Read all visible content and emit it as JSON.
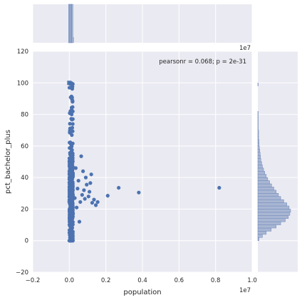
{
  "chart_data": {
    "type": "scatter",
    "xlabel": "population",
    "ylabel": "pct_bachelor_plus",
    "x_offset_label": "1e7",
    "top_offset_label": "1e7",
    "annotation": "pearsonr = 0.068; p = 2e-31",
    "xlim": [
      -0.2,
      1.0
    ],
    "ylim": [
      -20,
      120
    ],
    "x_units": "1e7",
    "x_ticks": [
      "−0.2",
      "0.0",
      "0.2",
      "0.4",
      "0.6",
      "0.8",
      "1.0"
    ],
    "y_ticks": [
      "−20",
      "0",
      "20",
      "40",
      "60",
      "80",
      "100",
      "120"
    ],
    "grid": true,
    "point_color": "#4c72b0",
    "background": "#eaeaf2",
    "outliers": [
      {
        "x": 0.82,
        "y": 33.5
      },
      {
        "x": 0.38,
        "y": 30.5
      },
      {
        "x": 0.27,
        "y": 33.5
      },
      {
        "x": 0.21,
        "y": 28.5
      },
      {
        "x": 0.155,
        "y": 24.5
      },
      {
        "x": 0.145,
        "y": 22.5
      },
      {
        "x": 0.135,
        "y": 26.0
      },
      {
        "x": 0.125,
        "y": 24.0
      },
      {
        "x": 0.12,
        "y": 42.0
      },
      {
        "x": 0.115,
        "y": 36.5
      },
      {
        "x": 0.11,
        "y": 31.0
      },
      {
        "x": 0.105,
        "y": 28.0
      },
      {
        "x": 0.095,
        "y": 35.5
      },
      {
        "x": 0.09,
        "y": 40.0
      },
      {
        "x": 0.085,
        "y": 26.5
      },
      {
        "x": 0.08,
        "y": 32.0
      },
      {
        "x": 0.075,
        "y": 44.0
      },
      {
        "x": 0.07,
        "y": 29.0
      },
      {
        "x": 0.065,
        "y": 53.5
      },
      {
        "x": 0.06,
        "y": 24.5
      },
      {
        "x": 0.055,
        "y": 12.0
      },
      {
        "x": 0.05,
        "y": 38.0
      },
      {
        "x": 0.045,
        "y": 33.0
      },
      {
        "x": 0.04,
        "y": 21.0
      },
      {
        "x": 0.035,
        "y": 46.0
      },
      {
        "x": 0.03,
        "y": 27.0
      }
    ],
    "cluster": {
      "x_min": 0.0,
      "x_max": 0.02,
      "y_min": 0,
      "y_max": 100,
      "mode_y": 27
    },
    "marginal_y_hist": {
      "bins_start": 0,
      "bin_width": 2,
      "counts": [
        3,
        12,
        22,
        35,
        48,
        60,
        72,
        80,
        84,
        86,
        82,
        76,
        68,
        60,
        54,
        48,
        42,
        36,
        31,
        26,
        22,
        18,
        15,
        12,
        10,
        8,
        7,
        6,
        5,
        4,
        3,
        3,
        2,
        2,
        2,
        1,
        1,
        1,
        1,
        1,
        1,
        0,
        0,
        0,
        0,
        0,
        0,
        0,
        0,
        1
      ]
    },
    "marginal_x_hist": {
      "x": 0.0,
      "width": 0.012
    }
  }
}
